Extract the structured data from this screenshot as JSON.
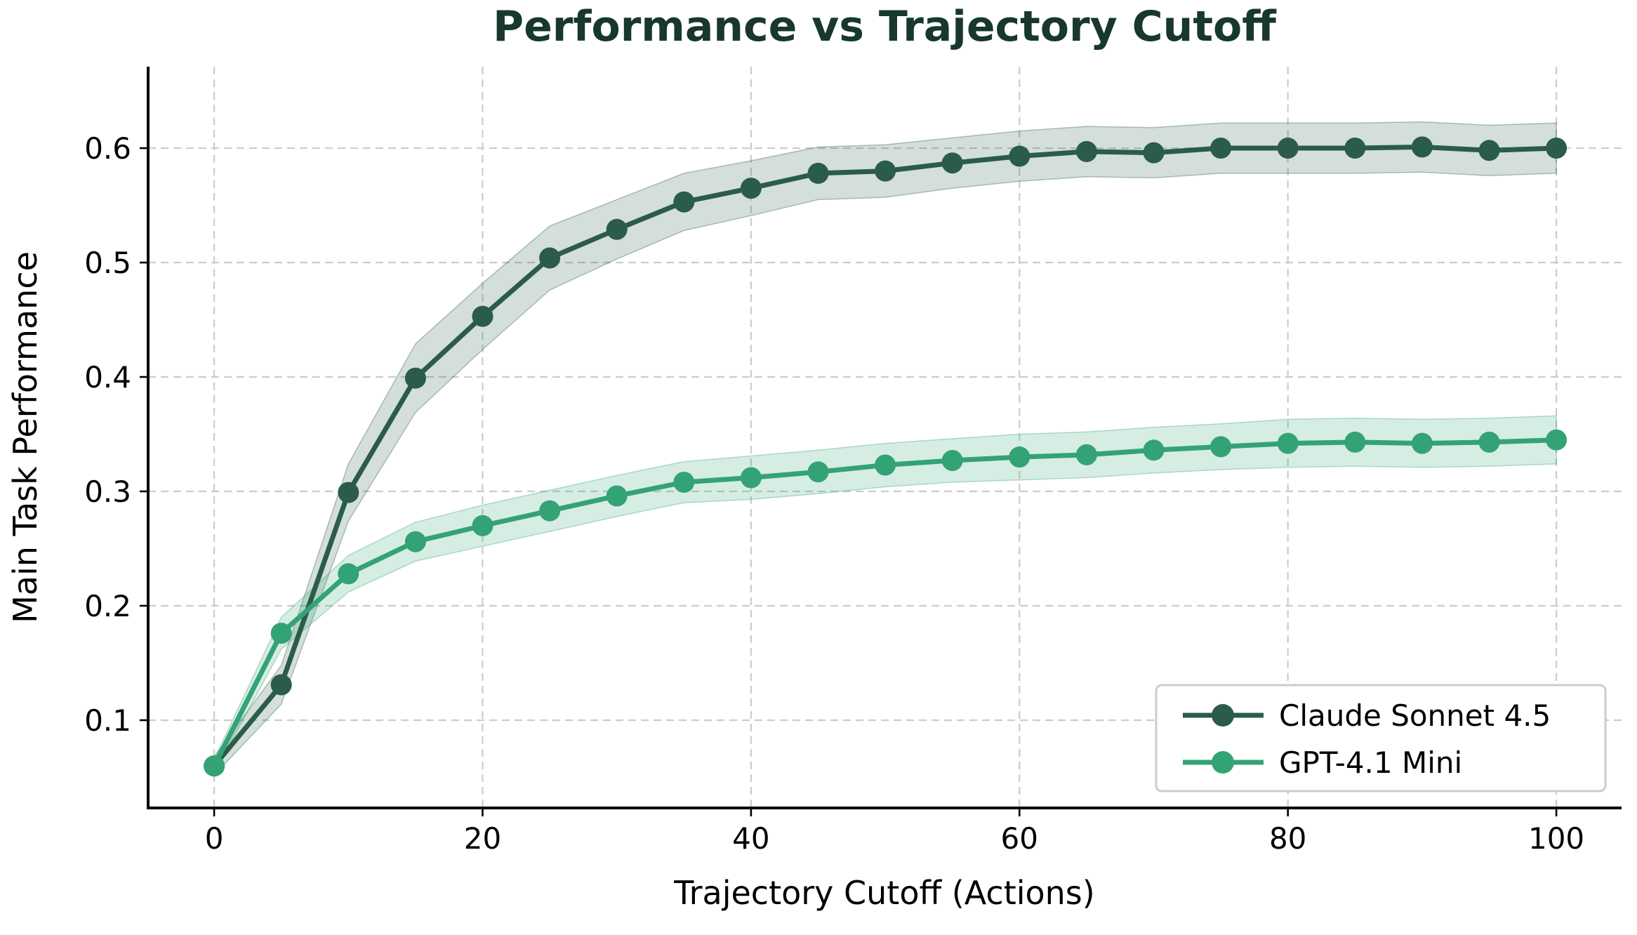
{
  "figure": {
    "background": "#ffffff",
    "title_color": "#17382B",
    "grid_color": "#cccccc",
    "spine_color": "#000000",
    "tick_label_color": "#000000",
    "legend_border_color": "#cccccc",
    "legend_background": "#ffffff"
  },
  "chart_data": {
    "type": "line",
    "title": "Performance vs Trajectory Cutoff",
    "xlabel": "Trajectory Cutoff (Actions)",
    "ylabel": "Main Task Performance",
    "x": [
      0,
      5,
      10,
      15,
      20,
      25,
      30,
      35,
      40,
      45,
      50,
      55,
      60,
      65,
      70,
      75,
      80,
      85,
      90,
      95,
      100
    ],
    "series": [
      {
        "name": "Claude Sonnet 4.5",
        "color": "#2A5C49",
        "band_color_rgb": "42,92,73",
        "band_alpha": 0.2,
        "values": [
          0.06,
          0.131,
          0.299,
          0.399,
          0.453,
          0.504,
          0.529,
          0.553,
          0.565,
          0.578,
          0.58,
          0.587,
          0.593,
          0.597,
          0.596,
          0.6,
          0.6,
          0.6,
          0.601,
          0.598,
          0.6
        ],
        "band_halfwidth": [
          0.008,
          0.017,
          0.025,
          0.03,
          0.029,
          0.028,
          0.026,
          0.025,
          0.024,
          0.023,
          0.023,
          0.022,
          0.022,
          0.022,
          0.022,
          0.022,
          0.022,
          0.022,
          0.022,
          0.022,
          0.022
        ]
      },
      {
        "name": "GPT-4.1 Mini",
        "color": "#33A376",
        "band_color_rgb": "51,163,118",
        "band_alpha": 0.2,
        "values": [
          0.06,
          0.176,
          0.228,
          0.256,
          0.27,
          0.283,
          0.296,
          0.308,
          0.312,
          0.317,
          0.323,
          0.327,
          0.33,
          0.332,
          0.336,
          0.339,
          0.342,
          0.343,
          0.342,
          0.343,
          0.345
        ],
        "band_halfwidth": [
          0.006,
          0.014,
          0.016,
          0.017,
          0.018,
          0.018,
          0.018,
          0.018,
          0.019,
          0.019,
          0.019,
          0.019,
          0.02,
          0.02,
          0.02,
          0.02,
          0.021,
          0.021,
          0.021,
          0.021,
          0.021
        ]
      }
    ],
    "xticks": [
      0,
      20,
      40,
      60,
      80,
      100
    ],
    "xtick_labels": [
      "0",
      "20",
      "40",
      "60",
      "80",
      "100"
    ],
    "yticks": [
      0.1,
      0.2,
      0.3,
      0.4,
      0.5,
      0.6
    ],
    "ytick_labels": [
      "0.1",
      "0.2",
      "0.3",
      "0.4",
      "0.5",
      "0.6"
    ],
    "xlim": [
      -4.92,
      104.86
    ],
    "ylim": [
      0.0233,
      0.6712
    ],
    "grid": true,
    "legend_position": "lower right"
  }
}
